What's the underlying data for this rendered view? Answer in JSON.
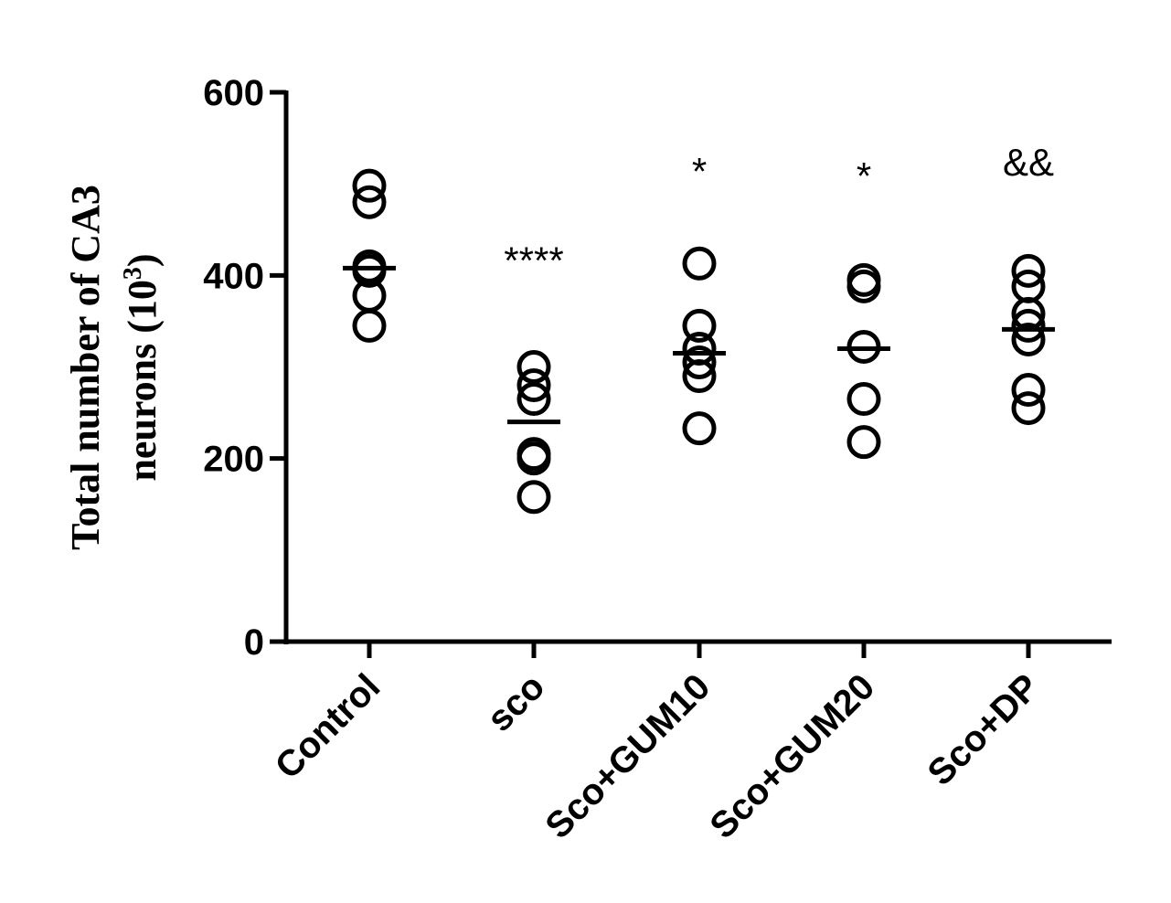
{
  "chart_data": {
    "type": "scatter",
    "ylabel": "Total number of CA3",
    "ylabel_line2_prefix": "neurons (10",
    "ylabel_line2_sup": "3",
    "ylabel_line2_suffix": ")",
    "ylim": [
      0,
      600
    ],
    "yticks": [
      "0",
      "200",
      "400",
      "600"
    ],
    "ytick_values": [
      0,
      200,
      400,
      600
    ],
    "categories": [
      "Control",
      "sco",
      "Sco+GUM10",
      "Sco+GUM20",
      "Sco+DP"
    ],
    "points": [
      [
        498,
        480,
        410,
        405,
        378,
        345
      ],
      [
        300,
        280,
        265,
        205,
        200,
        158
      ],
      [
        413,
        345,
        320,
        305,
        290,
        233
      ],
      [
        395,
        388,
        322,
        265,
        218
      ],
      [
        405,
        388,
        358,
        345,
        330,
        275,
        255
      ]
    ],
    "means": [
      408,
      240,
      315,
      320,
      341
    ],
    "significance": [
      "",
      "****",
      "*",
      "*",
      "&&"
    ],
    "significance_y": [
      0,
      418,
      515,
      510,
      525
    ],
    "marker": "open-circle",
    "color": "#000000",
    "grid": false,
    "legend": "none"
  }
}
